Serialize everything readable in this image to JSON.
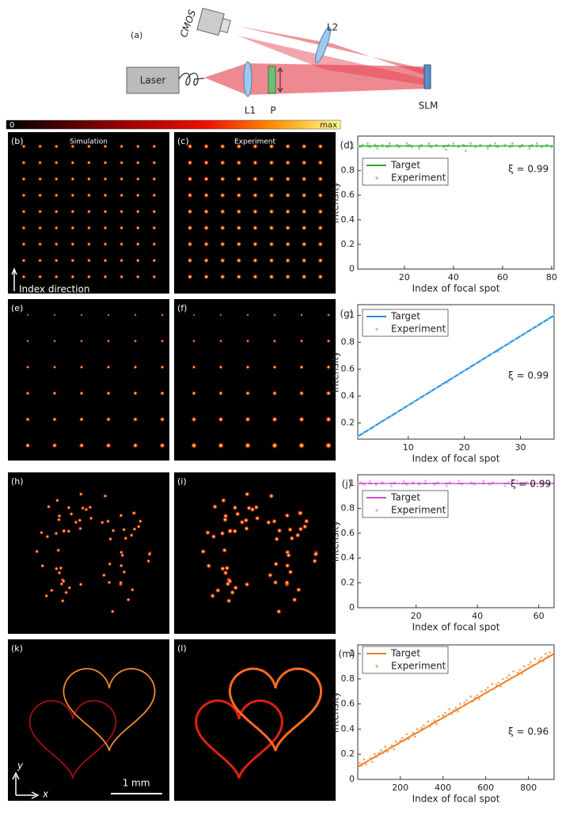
{
  "figure": {
    "diagram": {
      "label": "(a)",
      "laser": "Laser",
      "cmos": "CMOS",
      "l1": "L1",
      "p": "P",
      "l2": "L2",
      "slm": "SLM"
    },
    "colorbar": {
      "min": "0",
      "max": "max"
    },
    "panels": [
      {
        "label": "(b)",
        "title": "Simulation",
        "note": "Index direction"
      },
      {
        "label": "(c)",
        "title": "Experiment"
      },
      {
        "label": "(e)"
      },
      {
        "label": "(f)"
      },
      {
        "label": "(h)"
      },
      {
        "label": "(i)"
      },
      {
        "label": "(k)",
        "scale_bar": "1 mm",
        "axis_y": "y",
        "axis_x": "x"
      },
      {
        "label": "(l)"
      }
    ]
  },
  "chart_data": [
    {
      "type": "line",
      "panel_label": "(d)",
      "xlabel": "Index of focal spot",
      "ylabel": "Intensity",
      "annotation": "ξ = 0.99",
      "legend": "upper left",
      "xlim": [
        1,
        81
      ],
      "xticks": [
        20,
        40,
        60,
        80
      ],
      "ylim": [
        0,
        1.08
      ],
      "yticks": [
        0,
        0.2,
        0.4,
        0.6,
        0.8,
        1
      ],
      "series": [
        {
          "name": "Target",
          "mode": "line",
          "color": "#2ea82b",
          "x": [
            1,
            81
          ],
          "values": [
            1,
            1
          ]
        },
        {
          "name": "Experiment",
          "mode": "markers",
          "color": "#86d07f",
          "x": [
            1,
            2,
            3,
            4,
            5,
            6,
            7,
            8,
            9,
            10,
            11,
            12,
            13,
            14,
            15,
            16,
            17,
            18,
            19,
            20,
            21,
            22,
            23,
            24,
            25,
            26,
            27,
            28,
            29,
            30,
            31,
            32,
            33,
            34,
            35,
            36,
            37,
            38,
            39,
            40,
            41,
            42,
            43,
            44,
            45,
            46,
            47,
            48,
            49,
            50,
            51,
            52,
            53,
            54,
            55,
            56,
            57,
            58,
            59,
            60,
            61,
            62,
            63,
            64,
            65,
            66,
            67,
            68,
            69,
            70,
            71,
            72,
            73,
            74,
            75,
            76,
            77,
            78,
            79,
            80,
            81
          ],
          "values": [
            1.0,
            0.99,
            1.01,
            1.0,
            1.02,
            0.99,
            1.0,
            1.01,
            0.98,
            1.0,
            1.01,
            1.0,
            0.99,
            1.02,
            1.0,
            1.0,
            1.01,
            0.99,
            1.0,
            1.0,
            1.02,
            1.01,
            0.99,
            1.0,
            1.0,
            0.98,
            1.01,
            1.0,
            1.0,
            1.02,
            0.99,
            1.0,
            1.01,
            1.0,
            1.0,
            0.99,
            0.97,
            1.01,
            1.0,
            1.02,
            1.0,
            0.99,
            1.0,
            1.01,
            0.96,
            1.0,
            1.02,
            1.0,
            0.99,
            1.0,
            1.01,
            1.0,
            1.0,
            0.98,
            1.01,
            1.0,
            1.02,
            0.99,
            1.0,
            1.0,
            1.01,
            1.0,
            0.99,
            1.02,
            1.0,
            1.0,
            0.99,
            1.01,
            1.0,
            1.0,
            0.98,
            1.01,
            1.0,
            1.02,
            1.0,
            0.99,
            1.0,
            1.01,
            1.0,
            0.99,
            1.0
          ]
        }
      ]
    },
    {
      "type": "line",
      "panel_label": "(g)",
      "xlabel": "Index of focal spot",
      "ylabel": "Intensity",
      "annotation": "ξ = 0.99",
      "legend": "upper left",
      "xlim": [
        1,
        36
      ],
      "xticks": [
        10,
        20,
        30
      ],
      "ylim": [
        0.08,
        1.08
      ],
      "yticks": [
        0.2,
        0.4,
        0.6,
        0.8,
        1
      ],
      "series": [
        {
          "name": "Target",
          "mode": "line",
          "color": "#1f8de0",
          "x": [
            1,
            36
          ],
          "values": [
            0.1,
            1
          ]
        },
        {
          "name": "Experiment",
          "mode": "markers",
          "color": "#8cc8f0",
          "x": [
            1,
            2,
            3,
            4,
            5,
            6,
            7,
            8,
            9,
            10,
            11,
            12,
            13,
            14,
            15,
            16,
            17,
            18,
            19,
            20,
            21,
            22,
            23,
            24,
            25,
            26,
            27,
            28,
            29,
            30,
            31,
            32,
            33,
            34,
            35,
            36
          ],
          "values": [
            0.1,
            0.13,
            0.15,
            0.18,
            0.21,
            0.23,
            0.25,
            0.28,
            0.31,
            0.33,
            0.36,
            0.38,
            0.41,
            0.44,
            0.46,
            0.49,
            0.5,
            0.54,
            0.56,
            0.59,
            0.61,
            0.64,
            0.67,
            0.69,
            0.72,
            0.73,
            0.77,
            0.79,
            0.82,
            0.85,
            0.87,
            0.9,
            0.92,
            0.95,
            0.97,
            1.0
          ]
        }
      ]
    },
    {
      "type": "line",
      "panel_label": "(j)",
      "xlabel": "Index of focal spot",
      "ylabel": "Intensity",
      "annotation": "ξ = 0.99",
      "legend": "upper left",
      "xlim": [
        1,
        65
      ],
      "xticks": [
        20,
        40,
        60
      ],
      "ylim": [
        0,
        1.07
      ],
      "yticks": [
        0,
        0.2,
        0.4,
        0.6,
        0.8,
        1
      ],
      "series": [
        {
          "name": "Target",
          "mode": "line",
          "color": "#d04fd0",
          "x": [
            1,
            65
          ],
          "values": [
            1,
            1
          ]
        },
        {
          "name": "Experiment",
          "mode": "markers",
          "color": "#e8a2e8",
          "x": [
            1,
            2,
            3,
            4,
            5,
            6,
            7,
            8,
            9,
            10,
            11,
            12,
            13,
            14,
            15,
            16,
            17,
            18,
            19,
            20,
            21,
            22,
            23,
            24,
            25,
            26,
            27,
            28,
            29,
            30,
            31,
            32,
            33,
            34,
            35,
            36,
            37,
            38,
            39,
            40,
            41,
            42,
            43,
            44,
            45,
            46,
            47,
            48,
            49,
            50,
            51,
            52,
            53,
            54,
            55,
            56,
            57,
            58,
            59,
            60,
            61,
            62,
            63,
            64
          ],
          "values": [
            1.0,
            1.01,
            0.99,
            1.0,
            1.02,
            1.0,
            0.99,
            1.0,
            1.01,
            1.0,
            1.0,
            0.98,
            1.01,
            1.0,
            1.0,
            1.02,
            0.99,
            1.0,
            1.01,
            1.0,
            0.99,
            1.0,
            1.02,
            1.0,
            1.0,
            0.99,
            1.01,
            1.0,
            1.0,
            0.98,
            1.01,
            1.0,
            1.0,
            1.02,
            0.99,
            1.0,
            1.0,
            1.01,
            0.99,
            1.0,
            1.0,
            1.02,
            1.0,
            0.99,
            1.01,
            1.0,
            1.0,
            1.0,
            0.98,
            1.01,
            1.0,
            1.0,
            1.02,
            0.99,
            1.0,
            1.01,
            1.0,
            0.99,
            1.0,
            1.0,
            1.01,
            1.0,
            0.99,
            1.0
          ]
        }
      ]
    },
    {
      "type": "line",
      "panel_label": "(m)",
      "xlabel": "Index of focal spot",
      "ylabel": "Intensity",
      "annotation": "ξ = 0.96",
      "legend": "upper left",
      "xlim": [
        1,
        920
      ],
      "xticks": [
        200,
        400,
        600,
        800
      ],
      "ylim": [
        0,
        1.07
      ],
      "yticks": [
        0,
        0.2,
        0.4,
        0.6,
        0.8,
        1
      ],
      "series": [
        {
          "name": "Target",
          "mode": "line",
          "color": "#f07820",
          "x": [
            1,
            920
          ],
          "values": [
            0.1,
            1
          ]
        },
        {
          "name": "Experiment",
          "mode": "markers",
          "color": "#f5a060",
          "x": [
            10,
            20,
            30,
            40,
            50,
            60,
            70,
            80,
            90,
            100,
            110,
            120,
            130,
            140,
            150,
            160,
            170,
            180,
            190,
            200,
            210,
            220,
            230,
            240,
            250,
            260,
            270,
            280,
            290,
            300,
            310,
            320,
            330,
            340,
            350,
            360,
            370,
            380,
            390,
            400,
            410,
            420,
            430,
            440,
            450,
            460,
            470,
            480,
            490,
            500,
            510,
            520,
            530,
            540,
            550,
            560,
            570,
            580,
            590,
            600,
            610,
            620,
            630,
            640,
            650,
            660,
            670,
            680,
            690,
            700,
            710,
            720,
            730,
            740,
            750,
            760,
            770,
            780,
            790,
            800,
            810,
            820,
            830,
            840,
            850,
            860,
            870,
            880,
            890,
            900
          ],
          "values": [
            0.13,
            0.11,
            0.16,
            0.12,
            0.15,
            0.17,
            0.14,
            0.2,
            0.18,
            0.21,
            0.23,
            0.21,
            0.26,
            0.22,
            0.25,
            0.27,
            0.24,
            0.3,
            0.28,
            0.31,
            0.33,
            0.31,
            0.36,
            0.32,
            0.35,
            0.37,
            0.34,
            0.4,
            0.38,
            0.41,
            0.43,
            0.41,
            0.46,
            0.42,
            0.45,
            0.47,
            0.44,
            0.5,
            0.48,
            0.51,
            0.53,
            0.51,
            0.56,
            0.52,
            0.55,
            0.57,
            0.54,
            0.6,
            0.58,
            0.61,
            0.63,
            0.61,
            0.66,
            0.62,
            0.65,
            0.67,
            0.64,
            0.7,
            0.68,
            0.71,
            0.73,
            0.71,
            0.76,
            0.72,
            0.75,
            0.77,
            0.74,
            0.8,
            0.78,
            0.81,
            0.83,
            0.81,
            0.86,
            0.82,
            0.85,
            0.87,
            0.84,
            0.9,
            0.88,
            0.91,
            0.93,
            0.91,
            0.96,
            0.92,
            0.95,
            0.97,
            0.94,
            1.0,
            0.98,
            1.01
          ]
        }
      ]
    }
  ]
}
